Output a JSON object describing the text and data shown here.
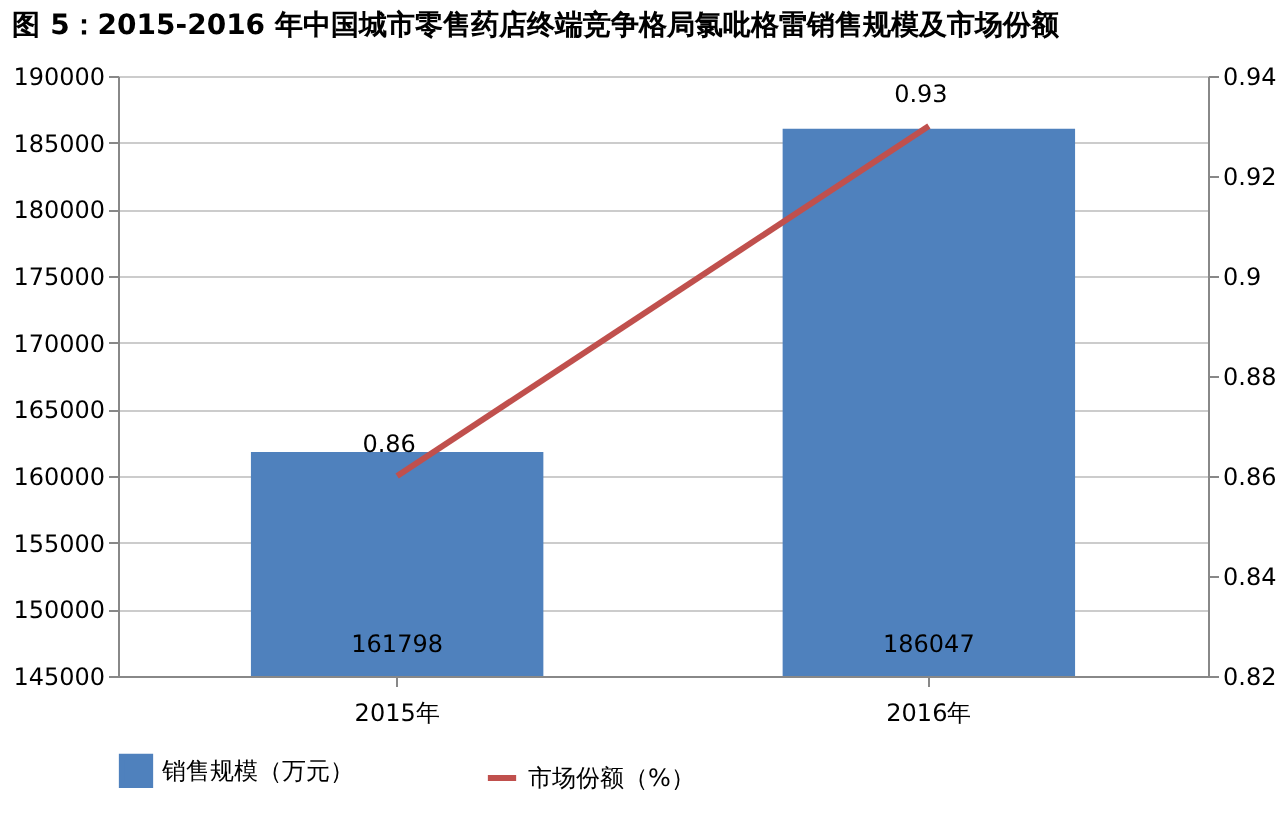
{
  "chart_data": {
    "type": "bar",
    "title": "图 5：2015-2016 年中国城市零售药店终端竞争格局氯吡格雷销售规模及市场份额",
    "categories": [
      "2015年",
      "2016年"
    ],
    "series": [
      {
        "name": "销售规模（万元）",
        "color": "#4f81bd",
        "values": [
          161798,
          186047
        ]
      },
      {
        "name": "市场份额（%）",
        "type": "line",
        "axis": "y2",
        "color": "#c0504d",
        "values": [
          0.86,
          0.93
        ]
      }
    ],
    "ylim": [
      145000,
      190000
    ],
    "yticks": [
      145000,
      150000,
      155000,
      160000,
      165000,
      170000,
      175000,
      180000,
      185000,
      190000
    ],
    "y2lim": [
      0.82,
      0.94
    ],
    "y2ticks": [
      0.82,
      0.84,
      0.86,
      0.88,
      0.9,
      0.92,
      0.94
    ],
    "data_labels": true,
    "grid": "y",
    "legend": "bottom",
    "marker": "none",
    "line_style": "solid"
  }
}
